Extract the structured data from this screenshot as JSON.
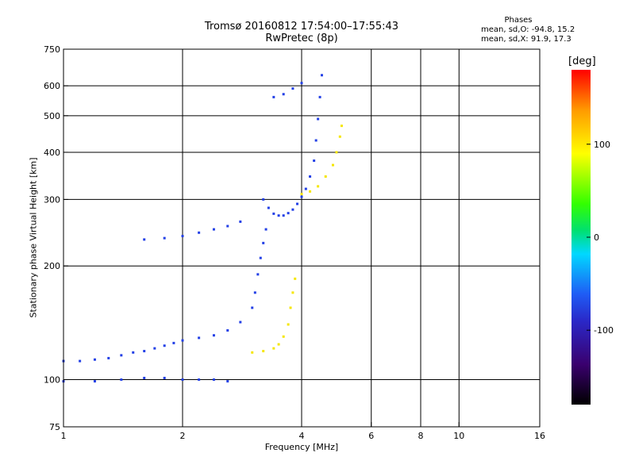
{
  "title": {
    "line1": "Tromsø 20160812 17:54:00–17:55:43",
    "line2": "RwPretec (8p)"
  },
  "phases": {
    "heading": "Phases",
    "o_line": "mean, sd,O: -94.8, 15.2",
    "x_line": "mean, sd,X: 91.9, 17.3"
  },
  "chart_data": {
    "type": "scatter",
    "title": "Tromsø 20160812 17:54:00–17:55:43",
    "subtitle": "RwPretec (8p)",
    "xlabel": "Frequency [MHz]",
    "ylabel": "Stationary phase Virtual Height [km]",
    "x_scale": "log",
    "y_scale": "log",
    "xlim": [
      1,
      16
    ],
    "ylim": [
      75,
      750
    ],
    "x_ticks": [
      1,
      2,
      4,
      6,
      8,
      10,
      16
    ],
    "y_ticks": [
      75,
      100,
      200,
      300,
      400,
      500,
      600,
      750
    ],
    "x_grid": [
      2,
      4,
      6,
      8,
      10
    ],
    "y_grid": [
      100,
      200,
      300,
      400,
      500,
      600
    ],
    "grid": true,
    "colorbar": {
      "label": "[deg]",
      "range": [
        -180,
        180
      ],
      "ticks": [
        100,
        0,
        -100
      ],
      "colors": [
        "#000000",
        "#3a006e",
        "#2a28c8",
        "#1f5cf5",
        "#00d8ff",
        "#00e070",
        "#33ff00",
        "#ffff00",
        "#ff9a00",
        "#ff0000"
      ]
    },
    "series": [
      {
        "name": "O",
        "color": "#2340e6",
        "points": [
          [
            1.0,
            112
          ],
          [
            1.1,
            112
          ],
          [
            1.2,
            113
          ],
          [
            1.3,
            114
          ],
          [
            1.4,
            116
          ],
          [
            1.5,
            118
          ],
          [
            1.6,
            119
          ],
          [
            1.7,
            121
          ],
          [
            1.8,
            123
          ],
          [
            1.9,
            125
          ],
          [
            2.0,
            127
          ],
          [
            2.2,
            129
          ],
          [
            2.4,
            131
          ],
          [
            2.6,
            135
          ],
          [
            2.8,
            142
          ],
          [
            3.0,
            155
          ],
          [
            3.05,
            170
          ],
          [
            3.1,
            190
          ],
          [
            3.15,
            210
          ],
          [
            3.2,
            230
          ],
          [
            3.25,
            250
          ],
          [
            3.2,
            300
          ],
          [
            3.3,
            285
          ],
          [
            3.4,
            275
          ],
          [
            3.5,
            272
          ],
          [
            3.6,
            272
          ],
          [
            3.7,
            276
          ],
          [
            3.8,
            282
          ],
          [
            3.9,
            292
          ],
          [
            4.0,
            305
          ],
          [
            4.1,
            320
          ],
          [
            4.2,
            345
          ],
          [
            4.3,
            380
          ],
          [
            4.35,
            430
          ],
          [
            4.4,
            490
          ],
          [
            4.45,
            560
          ],
          [
            4.5,
            640
          ],
          [
            1.0,
            99
          ],
          [
            1.2,
            99
          ],
          [
            1.4,
            100
          ],
          [
            1.6,
            101
          ],
          [
            1.8,
            101
          ],
          [
            2.0,
            100
          ],
          [
            2.2,
            100
          ],
          [
            2.4,
            100
          ],
          [
            2.6,
            99
          ],
          [
            1.6,
            235
          ],
          [
            1.8,
            237
          ],
          [
            2.0,
            240
          ],
          [
            2.2,
            245
          ],
          [
            2.4,
            250
          ],
          [
            2.6,
            255
          ],
          [
            2.8,
            262
          ],
          [
            3.4,
            560
          ],
          [
            3.6,
            570
          ],
          [
            3.8,
            590
          ],
          [
            4.0,
            610
          ]
        ]
      },
      {
        "name": "X",
        "color": "#f5e600",
        "points": [
          [
            3.0,
            118
          ],
          [
            3.2,
            119
          ],
          [
            3.4,
            121
          ],
          [
            3.5,
            124
          ],
          [
            3.6,
            130
          ],
          [
            3.7,
            140
          ],
          [
            3.75,
            155
          ],
          [
            3.8,
            170
          ],
          [
            3.85,
            185
          ],
          [
            4.0,
            310
          ],
          [
            4.2,
            315
          ],
          [
            4.4,
            325
          ],
          [
            4.6,
            345
          ],
          [
            4.8,
            370
          ],
          [
            4.9,
            400
          ],
          [
            5.0,
            440
          ],
          [
            5.05,
            470
          ]
        ]
      }
    ]
  }
}
